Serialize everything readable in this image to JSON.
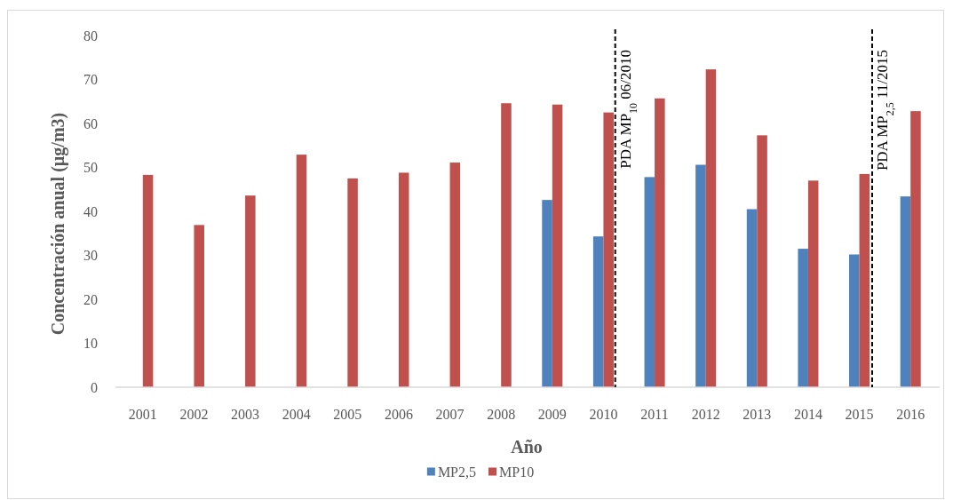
{
  "chart_data": {
    "type": "bar",
    "xlabel": "Año",
    "ylabel": "Concentración anual (µg/m3)",
    "x": [
      2001,
      2002,
      2003,
      2004,
      2005,
      2006,
      2007,
      2008,
      2009,
      2010,
      2011,
      2012,
      2013,
      2014,
      2015,
      2016
    ],
    "xlim": [
      2000.5,
      2016.5
    ],
    "xticks": [
      2001,
      2002,
      2003,
      2004,
      2005,
      2006,
      2007,
      2008,
      2009,
      2010,
      2011,
      2012,
      2013,
      2014,
      2015,
      2016
    ],
    "ylim": [
      0,
      80
    ],
    "yticks": [
      0,
      10,
      20,
      30,
      40,
      50,
      60,
      70,
      80
    ],
    "series": [
      {
        "name": "MP2,5",
        "color": "#4f81bd",
        "values": [
          null,
          null,
          null,
          null,
          null,
          null,
          null,
          null,
          42.6,
          34.3,
          47.8,
          50.6,
          40.5,
          31.5,
          30.2,
          43.4
        ]
      },
      {
        "name": "MP10",
        "color": "#c0504d",
        "values": [
          48.3,
          36.9,
          43.6,
          52.9,
          47.5,
          48.8,
          51.1,
          64.6,
          64.3,
          62.5,
          65.7,
          72.3,
          57.3,
          47.0,
          48.5,
          62.8
        ]
      }
    ],
    "ref_lines": [
      {
        "axis": "x",
        "value": 2010.23,
        "label": "PDA MP$_{10}$ 06/2010",
        "color": "#000000",
        "line_style": "dashed"
      },
      {
        "axis": "x",
        "value": 2015.25,
        "label": "PDA MP$_{2,5}$ 11/2015",
        "color": "#000000",
        "line_style": "dashed"
      }
    ],
    "legend": "bottom"
  }
}
